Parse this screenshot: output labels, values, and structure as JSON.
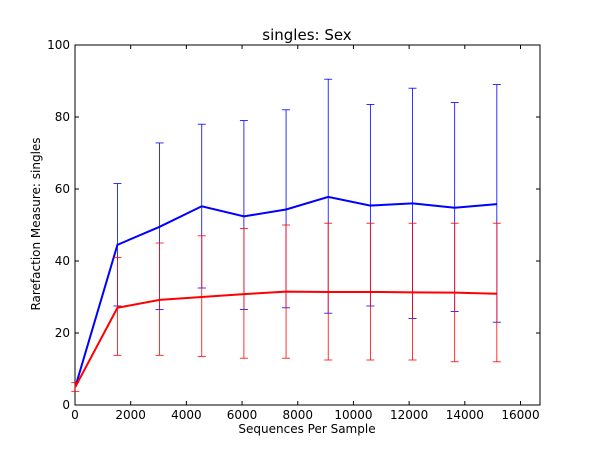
{
  "chart_data": {
    "type": "line",
    "title": "singles: Sex",
    "xlabel": "Sequences Per Sample",
    "ylabel": "Rarefaction Measure: singles",
    "xlim": [
      0,
      16700
    ],
    "ylim": [
      0,
      100
    ],
    "x_ticks": [
      0,
      2000,
      4000,
      6000,
      8000,
      10000,
      12000,
      14000,
      16000
    ],
    "y_ticks": [
      0,
      20,
      40,
      60,
      80,
      100
    ],
    "grid": false,
    "legend": "none",
    "x": [
      10,
      1524,
      3038,
      4552,
      6066,
      7580,
      9094,
      10608,
      12122,
      13636,
      15150
    ],
    "series": [
      {
        "color": "#0000ff",
        "values": [
          5.0,
          44.5,
          49.5,
          55.2,
          52.4,
          54.3,
          57.8,
          55.4,
          56.0,
          54.8,
          55.8
        ],
        "err_low": [
          5.0,
          27.5,
          26.5,
          32.5,
          26.5,
          27.0,
          25.5,
          27.5,
          24.0,
          26.0,
          23.0
        ],
        "err_high": [
          5.0,
          61.5,
          72.8,
          78.0,
          79.0,
          82.0,
          90.5,
          83.5,
          88.0,
          84.0,
          89.0
        ]
      },
      {
        "color": "#ff0000",
        "values": [
          5.0,
          27.0,
          29.2,
          30.0,
          30.8,
          31.5,
          31.4,
          31.4,
          31.3,
          31.2,
          30.9
        ],
        "err_low": [
          3.8,
          13.8,
          13.8,
          13.5,
          13.0,
          13.0,
          12.5,
          12.5,
          12.5,
          12.0,
          12.0
        ],
        "err_high": [
          6.2,
          41.0,
          45.0,
          47.0,
          49.0,
          50.0,
          50.5,
          50.5,
          50.5,
          50.5,
          50.5
        ]
      }
    ]
  }
}
